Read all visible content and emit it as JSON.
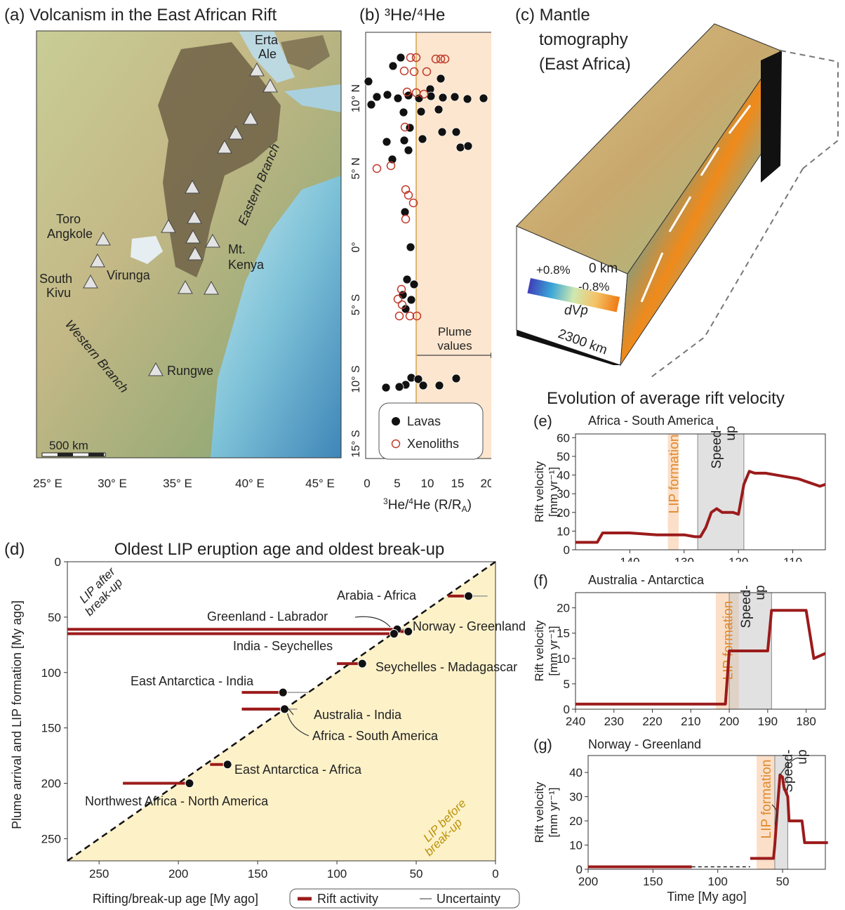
{
  "panel_a": {
    "title": "(a) Volcanism in the East African Rift",
    "sites": [
      "Erta Ale",
      "Toro Angkole",
      "Virunga",
      "South Kivu",
      "Mt. Kenya",
      "Rungwe"
    ],
    "branches": [
      "Eastern Branch",
      "Western Branch"
    ],
    "scalebar": "500 km",
    "x_ticks": [
      "25° E",
      "30° E",
      "35° E",
      "40° E",
      "45° E"
    ]
  },
  "panel_b": {
    "title": "(b) ³He/⁴He",
    "ylabels": [
      "10° N",
      "5° N",
      "0°",
      "5° S",
      "10° S",
      "15° S"
    ],
    "x_ticks": [
      "0",
      "5",
      "10",
      "15",
      "20"
    ],
    "xlabel": "³He/⁴He (R/RA)",
    "plume_label": "Plume values",
    "legend": [
      "Lavas",
      "Xenoliths"
    ]
  },
  "panel_c": {
    "title_lines": [
      "(c) Mantle",
      "tomography",
      "(East Africa)"
    ],
    "depth_top": "0 km",
    "depth_bottom": "2300 km",
    "scale_pos": "+0.8%",
    "scale_neg": "-0.8%",
    "scale_label": "dVp"
  },
  "evolution_title": "Evolution of average rift velocity",
  "colors": {
    "rift": "#9b1b1b",
    "lip": "#f4a460",
    "speedup": "#c8c8c8",
    "beige": "#fdf1c8",
    "plume": "#fde6cf"
  },
  "chart_data": [
    {
      "type": "line",
      "panel": "(d)",
      "title": "Oldest LIP eruption age and oldest break-up",
      "xlabel": "Rifting/break-up age [My ago]",
      "ylabel": "Plume arrival and LIP formation [My ago]",
      "x_ticks": [
        250,
        200,
        150,
        100,
        50,
        0
      ],
      "y_ticks": [
        0,
        50,
        100,
        150,
        200,
        250
      ],
      "corner_labels": [
        "LIP after break-up",
        "LIP before break-up"
      ],
      "legend": [
        "Rift activity",
        "Uncertainty"
      ],
      "points": [
        {
          "label": "Arabia - Africa",
          "x": 17,
          "y": 31,
          "rift": [
            30,
            17
          ],
          "unc": [
            17,
            5
          ]
        },
        {
          "label": "Greenland - Labrador",
          "x": 62,
          "y": 61,
          "rift": [
            270,
            62
          ],
          "unc": [
            62,
            55
          ]
        },
        {
          "label": "Norway - Greenland",
          "x": 55,
          "y": 63,
          "rift": [
            60,
            55
          ],
          "unc": null
        },
        {
          "label": "India - Seychelles",
          "x": 64,
          "y": 65,
          "rift": [
            270,
            64
          ],
          "unc": null
        },
        {
          "label": "Seychelles - Madagascar",
          "x": 84,
          "y": 92,
          "rift": [
            100,
            84
          ],
          "unc": null
        },
        {
          "label": "East Antarctica - India",
          "x": 134,
          "y": 118,
          "rift": [
            160,
            134
          ],
          "unc": [
            134,
            118
          ]
        },
        {
          "label": "Australia - India",
          "x": 133,
          "y": 133,
          "rift": [
            160,
            133
          ],
          "unc": [
            133,
            125
          ]
        },
        {
          "label": "Africa - South America",
          "x": 133,
          "y": 133,
          "rift": [
            160,
            133
          ],
          "unc": null
        },
        {
          "label": "East Antarctica - Africa",
          "x": 169,
          "y": 183,
          "rift": [
            180,
            169
          ],
          "unc": null
        },
        {
          "label": "Northwest Africa - North America",
          "x": 193,
          "y": 200,
          "rift": [
            235,
            193
          ],
          "unc": null
        }
      ]
    },
    {
      "type": "line",
      "panel": "(e)",
      "title": "Africa - South America",
      "ylabel": "Rift velocity [mm yr⁻¹]",
      "x_ticks": [
        140,
        130,
        120,
        110
      ],
      "y_ticks": [
        0,
        10,
        20,
        30,
        40,
        50,
        60
      ],
      "lip": [
        133,
        131
      ],
      "speedup": [
        127.5,
        119
      ],
      "lip_label": "LIP formation",
      "speedup_label": "Speed-up",
      "x": [
        150,
        146,
        145,
        140,
        135,
        130,
        128,
        127,
        126,
        125,
        124,
        123,
        121,
        120,
        119,
        118,
        117,
        115,
        113,
        111,
        109,
        107,
        105,
        104
      ],
      "y": [
        4,
        4,
        9,
        9,
        8,
        8,
        7,
        7,
        12,
        20,
        22,
        20,
        20,
        19,
        35,
        42,
        41,
        41,
        40,
        39,
        38,
        36,
        34,
        35
      ]
    },
    {
      "type": "line",
      "panel": "(f)",
      "title": "Australia - Antarctica",
      "ylabel": "Rift velocity [mm yr⁻¹]",
      "x_ticks": [
        240,
        230,
        220,
        210,
        200,
        190,
        180
      ],
      "y_ticks": [
        0,
        5,
        10,
        15,
        20
      ],
      "lip": [
        203.5,
        197.5
      ],
      "speedup": [
        200,
        189
      ],
      "lip_label": "LIP formation",
      "speedup_label": "Speed-up",
      "x": [
        240,
        201,
        200,
        199,
        190,
        189,
        180,
        178,
        175
      ],
      "y": [
        1,
        1,
        11.5,
        11.5,
        11.5,
        19.5,
        19.5,
        10,
        11
      ]
    },
    {
      "type": "line",
      "panel": "(g)",
      "title": "Norway - Greenland",
      "ylabel": "Rift velocity [mm yr⁻¹]",
      "xlabel": "Time [My ago]",
      "x_ticks": [
        200,
        150,
        100,
        50
      ],
      "y_ticks": [
        0,
        10,
        20,
        30,
        40
      ],
      "lip": [
        70,
        56
      ],
      "speedup": [
        56,
        46
      ],
      "lip_label": "LIP formation",
      "speedup_label": "Speed-up",
      "x": [
        200,
        120
      ],
      "y": [
        1,
        1
      ],
      "dashed": {
        "x": [
          120,
          75
        ],
        "y": [
          1,
          1
        ]
      },
      "late": {
        "x": [
          75,
          57,
          56,
          54,
          52,
          50,
          49,
          46,
          45,
          35,
          33,
          25,
          24,
          15
        ],
        "y": [
          4.5,
          4.5,
          10,
          25,
          39,
          38,
          34,
          30,
          20,
          20,
          11,
          11,
          11,
          11
        ]
      }
    }
  ]
}
